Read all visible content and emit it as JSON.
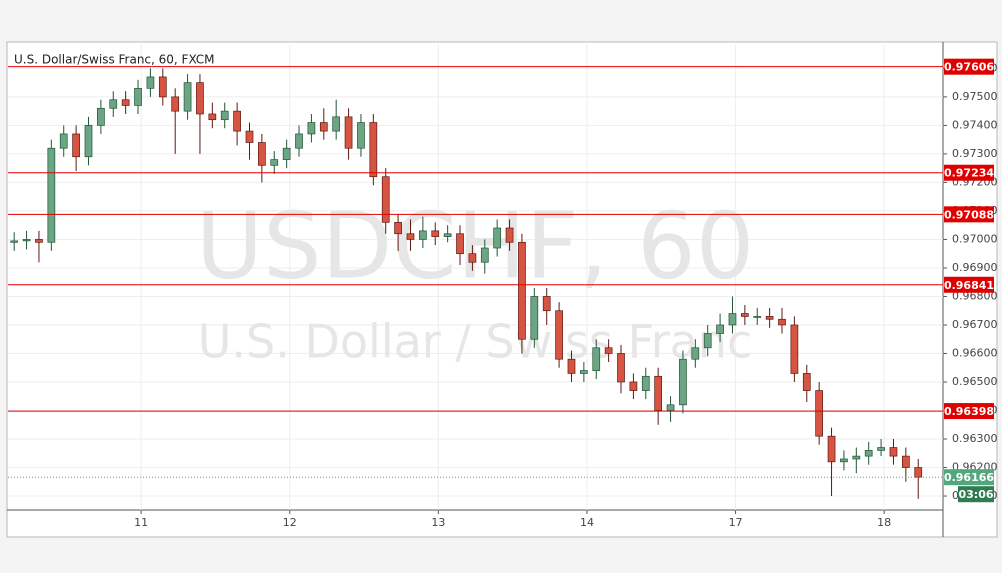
{
  "chart_data": {
    "type": "candlestick",
    "title": "U.S. Dollar/Swiss Franc, 60, FXCM",
    "watermark": "USDCHF, 60",
    "watermark_subtitle": "U.S. Dollar / Swiss Franc",
    "up_color": "#6ba583",
    "down_color": "#d75442",
    "open": [
      0.9699,
      0.96995,
      0.97,
      0.9699,
      0.9732,
      0.9737,
      0.9729,
      0.974,
      0.9746,
      0.9749,
      0.9747,
      0.9753,
      0.9757,
      0.975,
      0.9745,
      0.9755,
      0.9744,
      0.9742,
      0.9745,
      0.9738,
      0.9734,
      0.9726,
      0.9728,
      0.9732,
      0.9737,
      0.9741,
      0.9738,
      0.9743,
      0.9732,
      0.9741,
      0.9722,
      0.9706,
      0.9702,
      0.97,
      0.9703,
      0.9701,
      0.9702,
      0.9695,
      0.9692,
      0.9697,
      0.9704,
      0.9699,
      0.9665,
      0.968,
      0.9675,
      0.9658,
      0.9653,
      0.9654,
      0.9662,
      0.966,
      0.965,
      0.9647,
      0.9652,
      0.964,
      0.9642,
      0.9658,
      0.9662,
      0.9667,
      0.967,
      0.9674,
      0.9673,
      0.9673,
      0.9672,
      0.967,
      0.9653,
      0.9647,
      0.9631,
      0.9622,
      0.9623,
      0.9624,
      0.9626,
      0.9627,
      0.9624,
      0.962
    ],
    "high": [
      0.97025,
      0.9703,
      0.9703,
      0.9735,
      0.974,
      0.974,
      0.9743,
      0.9749,
      0.9752,
      0.9752,
      0.9756,
      0.976,
      0.976,
      0.9753,
      0.9758,
      0.9758,
      0.9748,
      0.9748,
      0.9748,
      0.9741,
      0.9737,
      0.9731,
      0.9735,
      0.974,
      0.9744,
      0.9746,
      0.9749,
      0.9746,
      0.9744,
      0.9744,
      0.9725,
      0.9709,
      0.9707,
      0.9708,
      0.9706,
      0.9705,
      0.9705,
      0.9698,
      0.97,
      0.9707,
      0.9707,
      0.9702,
      0.9683,
      0.9683,
      0.9678,
      0.9661,
      0.9657,
      0.9665,
      0.9665,
      0.9663,
      0.9653,
      0.9655,
      0.9655,
      0.9645,
      0.9661,
      0.9665,
      0.967,
      0.9674,
      0.968,
      0.9677,
      0.9676,
      0.9676,
      0.9676,
      0.9673,
      0.9656,
      0.965,
      0.9634,
      0.9626,
      0.9627,
      0.9629,
      0.963,
      0.963,
      0.9627,
      0.9623
    ],
    "low": [
      0.9696,
      0.96965,
      0.9692,
      0.9696,
      0.9729,
      0.9724,
      0.9726,
      0.9737,
      0.9743,
      0.9744,
      0.9744,
      0.975,
      0.9747,
      0.973,
      0.9742,
      0.973,
      0.9739,
      0.9739,
      0.9733,
      0.9728,
      0.972,
      0.9723,
      0.9725,
      0.9729,
      0.9734,
      0.9735,
      0.9735,
      0.9728,
      0.9729,
      0.9719,
      0.9702,
      0.9696,
      0.9696,
      0.9697,
      0.9698,
      0.9699,
      0.9691,
      0.9689,
      0.9688,
      0.9694,
      0.9696,
      0.966,
      0.9662,
      0.967,
      0.9655,
      0.965,
      0.965,
      0.9651,
      0.9657,
      0.9646,
      0.9644,
      0.9644,
      0.9635,
      0.9636,
      0.9639,
      0.9655,
      0.9659,
      0.9664,
      0.9667,
      0.967,
      0.967,
      0.9669,
      0.9667,
      0.965,
      0.9643,
      0.9628,
      0.961,
      0.9619,
      0.9618,
      0.9621,
      0.9624,
      0.9621,
      0.9615,
      0.9609
    ],
    "close": [
      0.96995,
      0.97,
      0.9699,
      0.9732,
      0.9737,
      0.9729,
      0.974,
      0.9746,
      0.9749,
      0.9747,
      0.9753,
      0.9757,
      0.975,
      0.9745,
      0.9755,
      0.9744,
      0.9742,
      0.9745,
      0.9738,
      0.9734,
      0.9726,
      0.9728,
      0.9732,
      0.9737,
      0.9741,
      0.9738,
      0.9743,
      0.9732,
      0.9741,
      0.9722,
      0.9706,
      0.9702,
      0.97,
      0.9703,
      0.9701,
      0.9702,
      0.9695,
      0.9692,
      0.9697,
      0.9704,
      0.9699,
      0.9665,
      0.968,
      0.9675,
      0.9658,
      0.9653,
      0.9654,
      0.9662,
      0.966,
      0.965,
      0.9647,
      0.9652,
      0.964,
      0.9642,
      0.9658,
      0.9662,
      0.9667,
      0.967,
      0.9674,
      0.9673,
      0.9673,
      0.9672,
      0.967,
      0.9653,
      0.9647,
      0.9631,
      0.9622,
      0.9623,
      0.9624,
      0.9626,
      0.9627,
      0.9624,
      0.962,
      0.96166
    ],
    "xlim": [
      0,
      75.5
    ],
    "xticks": [
      {
        "value": 10.75,
        "label": "11"
      },
      {
        "value": 22.75,
        "label": "12"
      },
      {
        "value": 34.75,
        "label": "13"
      },
      {
        "value": 46.75,
        "label": "14"
      },
      {
        "value": 58.75,
        "label": "17"
      },
      {
        "value": 70.75,
        "label": "18"
      }
    ],
    "ylim": [
      0.96051,
      0.97682
    ],
    "yticks": [
      {
        "value": 0.961,
        "label": "0.96100"
      },
      {
        "value": 0.962,
        "label": "0.96200"
      },
      {
        "value": 0.963,
        "label": "0.96300"
      },
      {
        "value": 0.964,
        "label": "0.96400"
      },
      {
        "value": 0.965,
        "label": "0.96500"
      },
      {
        "value": 0.966,
        "label": "0.96600"
      },
      {
        "value": 0.967,
        "label": "0.96700"
      },
      {
        "value": 0.968,
        "label": "0.96800"
      },
      {
        "value": 0.969,
        "label": "0.96900"
      },
      {
        "value": 0.97,
        "label": "0.97000"
      },
      {
        "value": 0.971,
        "label": "0.97100"
      },
      {
        "value": 0.972,
        "label": "0.97200"
      },
      {
        "value": 0.973,
        "label": "0.97300"
      },
      {
        "value": 0.974,
        "label": "0.97400"
      },
      {
        "value": 0.975,
        "label": "0.97500"
      },
      {
        "value": 0.976,
        "label": "0.97600"
      }
    ],
    "grid": true,
    "levels": [
      0.97606,
      0.97234,
      0.97088,
      0.96841,
      0.96398
    ],
    "level_color": "#e00000",
    "last_price": 0.96166,
    "last_price_color": "#53a77c",
    "countdown": "03:06",
    "countdown_color": "#2f7b52"
  }
}
